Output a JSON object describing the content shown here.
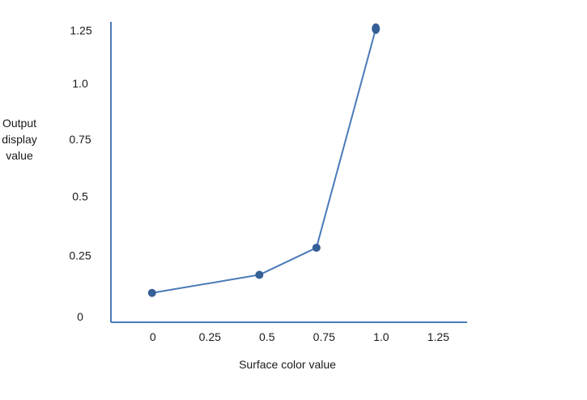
{
  "chart_data": {
    "type": "line",
    "title": "",
    "xlabel": "Surface color value",
    "ylabel": [
      "Output",
      "display",
      "value"
    ],
    "x_ticks": [
      "0",
      "0.25",
      "0.5",
      "0.75",
      "1.0",
      "1.25"
    ],
    "y_ticks": [
      "0",
      "0.25",
      "0.5",
      "0.75",
      "1.0",
      "1.25"
    ],
    "xlim": [
      -0.18,
      1.38
    ],
    "ylim": [
      -0.05,
      1.28
    ],
    "grid": false,
    "series": [
      {
        "x": [
          0,
          0.47,
          0.72,
          0.98
        ],
        "y": [
          0.08,
          0.16,
          0.28,
          1.25
        ],
        "color": "#4a7ab8",
        "marker_color": "#355f97"
      }
    ]
  }
}
